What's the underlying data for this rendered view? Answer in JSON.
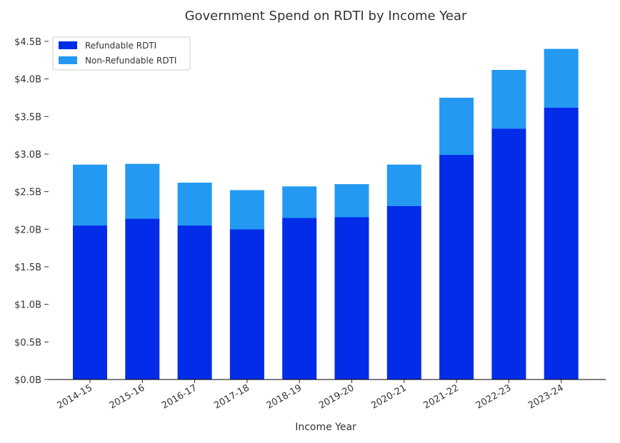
{
  "chart_data": {
    "type": "bar",
    "stacked": true,
    "title": "Government Spend on RDTI by Income Year",
    "xlabel": "Income Year",
    "ylabel": "",
    "categories": [
      "2014-15",
      "2015-16",
      "2016-17",
      "2017-18",
      "2018-19",
      "2019-20",
      "2020-21",
      "2021-22",
      "2022-23",
      "2023-24"
    ],
    "series": [
      {
        "name": "Refundable RDTI",
        "color": "#022CE8",
        "values": [
          2.05,
          2.14,
          2.05,
          2.0,
          2.15,
          2.16,
          2.31,
          2.99,
          3.34,
          3.62
        ]
      },
      {
        "name": "Non-Refundable RDTI",
        "color": "#2399F2",
        "values": [
          0.81,
          0.73,
          0.57,
          0.52,
          0.42,
          0.44,
          0.55,
          0.76,
          0.78,
          0.78
        ]
      }
    ],
    "ylim": [
      0,
      4.5
    ],
    "yticks": [
      0.0,
      0.5,
      1.0,
      1.5,
      2.0,
      2.5,
      3.0,
      3.5,
      4.0,
      4.5
    ],
    "ytick_labels": [
      "$0.0B",
      "$0.5B",
      "$1.0B",
      "$1.5B",
      "$2.0B",
      "$2.5B",
      "$3.0B",
      "$3.5B",
      "$4.0B",
      "$4.5B"
    ],
    "grid": false,
    "legend": "top-left"
  }
}
